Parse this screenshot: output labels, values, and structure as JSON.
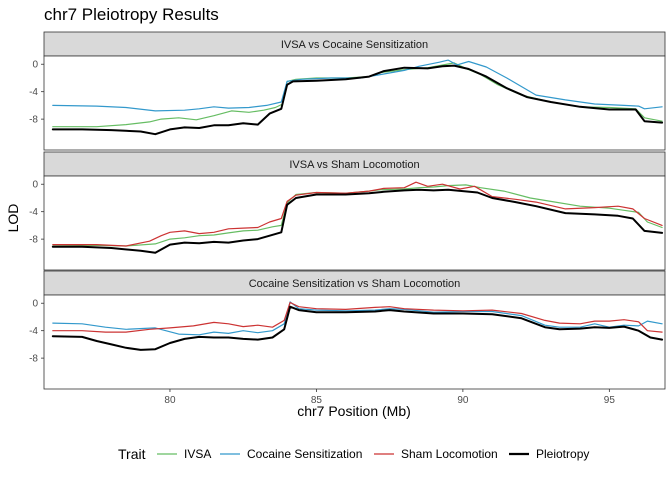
{
  "chart_data": {
    "type": "line",
    "title": "chr7 Pleiotropy Results",
    "xlabel": "chr7 Position (Mb)",
    "ylabel": "LOD",
    "xlim": [
      75.7,
      96.9
    ],
    "ylim": [
      -12.5,
      1.2
    ],
    "x_ticks": [
      80,
      85,
      90,
      95
    ],
    "y_ticks": [
      0,
      -4,
      -8
    ],
    "grid": false,
    "legend": {
      "title": "Trait",
      "placement": "bottom",
      "entries": [
        {
          "name": "IVSA",
          "color": "#66BD63"
        },
        {
          "name": "Cocaine Sensitization",
          "color": "#3399CC"
        },
        {
          "name": "Sham Locomotion",
          "color": "#CC3333"
        },
        {
          "name": "Pleiotropy",
          "color": "#000000"
        }
      ]
    },
    "panels": [
      {
        "label": "IVSA vs Cocaine Sensitization",
        "series": [
          {
            "name": "IVSA",
            "color": "#66BD63",
            "width": 1.2,
            "x": [
              76,
              77.5,
              78.5,
              79.3,
              79.7,
              80.3,
              80.9,
              81.5,
              82.1,
              82.7,
              83.2,
              83.6,
              83.85,
              84.0,
              84.3,
              85,
              86,
              86.8,
              87.2,
              88,
              88.8,
              89.2,
              89.7,
              90.1,
              90.6,
              91.2,
              92,
              93,
              94,
              95,
              95.9,
              96.2,
              96.8
            ],
            "y": [
              -9.1,
              -9.1,
              -8.8,
              -8.4,
              -8.0,
              -7.8,
              -8.1,
              -7.5,
              -6.8,
              -7.0,
              -6.7,
              -6.3,
              -5.8,
              -2.5,
              -2.2,
              -2.0,
              -2.0,
              -1.8,
              -1.2,
              -0.8,
              -0.5,
              -0.2,
              0.2,
              -0.6,
              -1.5,
              -3.0,
              -4.5,
              -5.5,
              -6.2,
              -6.3,
              -6.5,
              -7.8,
              -8.3
            ]
          },
          {
            "name": "Cocaine Sensitization",
            "color": "#3399CC",
            "width": 1.2,
            "x": [
              76,
              77.5,
              78.5,
              79.5,
              80.5,
              81,
              81.5,
              82,
              82.7,
              83.3,
              83.8,
              84.0,
              84.5,
              85.5,
              86.5,
              87.2,
              88,
              88.5,
              89.2,
              89.5,
              89.8,
              90.2,
              90.8,
              91.5,
              92.5,
              93.5,
              94.5,
              95.5,
              96.0,
              96.2,
              96.8
            ],
            "y": [
              -6.0,
              -6.1,
              -6.3,
              -6.8,
              -6.7,
              -6.5,
              -6.2,
              -6.4,
              -6.3,
              -6.0,
              -5.5,
              -2.5,
              -2.2,
              -2.0,
              -2.0,
              -1.5,
              -0.9,
              -0.3,
              0.3,
              0.6,
              -0.1,
              0.4,
              -0.4,
              -2.0,
              -4.5,
              -5.2,
              -5.8,
              -6.0,
              -6.1,
              -6.5,
              -6.2
            ]
          },
          {
            "name": "Pleiotropy",
            "color": "#000000",
            "width": 2.0,
            "x": [
              76,
              77,
              78,
              79,
              79.5,
              80,
              80.5,
              81,
              81.5,
              82,
              82.5,
              83,
              83.4,
              83.8,
              84.0,
              84.2,
              85,
              86,
              86.8,
              87.3,
              88,
              88.8,
              89.3,
              89.7,
              90.2,
              90.8,
              91.5,
              92.2,
              93,
              94,
              95,
              95.9,
              96.2,
              96.8
            ],
            "y": [
              -9.5,
              -9.5,
              -9.6,
              -9.8,
              -10.2,
              -9.5,
              -9.2,
              -9.3,
              -8.9,
              -8.9,
              -8.6,
              -8.8,
              -7.2,
              -6.5,
              -3.0,
              -2.5,
              -2.4,
              -2.2,
              -1.8,
              -1.0,
              -0.5,
              -0.6,
              -0.3,
              -0.2,
              -0.7,
              -1.8,
              -3.5,
              -4.8,
              -5.5,
              -6.2,
              -6.6,
              -6.6,
              -8.3,
              -8.5
            ]
          }
        ]
      },
      {
        "label": "IVSA vs Sham Locomotion",
        "series": [
          {
            "name": "IVSA",
            "color": "#66BD63",
            "width": 1.2,
            "x": [
              76,
              77.5,
              78.5,
              79.5,
              80,
              80.5,
              81,
              81.5,
              82,
              82.5,
              83,
              83.5,
              83.8,
              84.0,
              84.3,
              85,
              86,
              86.8,
              87.2,
              88,
              88.5,
              89,
              89.5,
              90.1,
              90.6,
              91.4,
              92.3,
              93,
              94,
              95,
              95.5,
              96,
              96.3,
              96.8
            ],
            "y": [
              -9.0,
              -8.9,
              -9.0,
              -8.7,
              -8.0,
              -7.8,
              -7.5,
              -7.4,
              -7.1,
              -6.8,
              -6.7,
              -6.2,
              -6.0,
              -2.7,
              -1.5,
              -1.2,
              -1.3,
              -1.0,
              -0.8,
              -0.7,
              -0.5,
              -0.4,
              -0.2,
              -0.1,
              -0.5,
              -1.0,
              -2.0,
              -2.5,
              -3.2,
              -3.5,
              -3.8,
              -4.1,
              -5.5,
              -6.3
            ]
          },
          {
            "name": "Sham Locomotion",
            "color": "#CC3333",
            "width": 1.2,
            "x": [
              76,
              77.5,
              78.5,
              79.3,
              79.7,
              80,
              80.5,
              81,
              81.5,
              82,
              82.5,
              83,
              83.4,
              83.8,
              84.0,
              84.3,
              85,
              86,
              86.8,
              87.3,
              88,
              88.4,
              88.8,
              89.3,
              89.9,
              90.4,
              91,
              91.8,
              92.5,
              93.5,
              94.5,
              95.3,
              95.8,
              96.2,
              96.8
            ],
            "y": [
              -8.8,
              -8.8,
              -9.0,
              -8.3,
              -7.5,
              -7.0,
              -6.8,
              -7.2,
              -7.0,
              -6.5,
              -6.4,
              -6.3,
              -5.5,
              -5.0,
              -2.5,
              -1.6,
              -1.2,
              -1.3,
              -1.0,
              -0.6,
              -0.5,
              0.3,
              -0.3,
              0.0,
              -0.7,
              -0.3,
              -1.8,
              -2.2,
              -2.6,
              -3.6,
              -3.4,
              -3.2,
              -3.6,
              -5.0,
              -6.0
            ]
          },
          {
            "name": "Pleiotropy",
            "color": "#000000",
            "width": 2.0,
            "x": [
              76,
              77,
              78,
              79,
              79.5,
              80,
              80.5,
              81,
              81.5,
              82,
              82.5,
              83,
              83.4,
              83.8,
              84.0,
              84.3,
              85,
              86,
              86.8,
              87.3,
              88,
              88.5,
              89,
              89.5,
              90,
              90.5,
              91,
              91.8,
              92.5,
              93.5,
              94.5,
              95.3,
              95.8,
              96.2,
              96.8
            ],
            "y": [
              -9.1,
              -9.1,
              -9.3,
              -9.7,
              -10.0,
              -8.8,
              -8.5,
              -8.6,
              -8.4,
              -8.5,
              -8.2,
              -8.0,
              -7.5,
              -7.0,
              -3.0,
              -2.0,
              -1.5,
              -1.5,
              -1.3,
              -1.1,
              -0.9,
              -0.8,
              -0.9,
              -0.8,
              -1.0,
              -1.2,
              -2.0,
              -2.6,
              -3.2,
              -4.2,
              -4.4,
              -4.6,
              -5.0,
              -6.8,
              -7.1
            ]
          }
        ]
      },
      {
        "label": "Cocaine Sensitization vs Sham Locomotion",
        "series": [
          {
            "name": "Cocaine Sensitization",
            "color": "#3399CC",
            "width": 1.2,
            "x": [
              76,
              77,
              77.8,
              78.5,
              79.5,
              80.3,
              81.0,
              81.5,
              82.0,
              82.5,
              83.0,
              83.5,
              83.9,
              84.1,
              84.4,
              85,
              86,
              87,
              87.5,
              88,
              89,
              90,
              91,
              92,
              92.8,
              93.3,
              94,
              94.5,
              95,
              95.5,
              96,
              96.3,
              96.8
            ],
            "y": [
              -2.9,
              -3.0,
              -3.5,
              -3.8,
              -3.6,
              -4.5,
              -4.6,
              -4.2,
              -4.4,
              -4.0,
              -4.3,
              -4.0,
              -3.0,
              0.2,
              -0.8,
              -1.0,
              -1.1,
              -1.0,
              -0.8,
              -0.9,
              -1.3,
              -1.2,
              -1.2,
              -1.8,
              -3.2,
              -3.5,
              -3.5,
              -3.0,
              -3.5,
              -3.2,
              -3.3,
              -2.6,
              -3.0
            ]
          },
          {
            "name": "Sham Locomotion",
            "color": "#CC3333",
            "width": 1.2,
            "x": [
              76,
              77,
              77.8,
              78.5,
              79.3,
              80.0,
              80.8,
              81.5,
              82.0,
              82.5,
              83.0,
              83.5,
              83.9,
              84.1,
              84.4,
              85,
              86,
              87,
              87.5,
              88,
              89,
              90,
              91,
              92,
              92.8,
              93.3,
              94,
              94.5,
              95,
              95.5,
              96,
              96.3,
              96.8
            ],
            "y": [
              -4.0,
              -4.0,
              -4.2,
              -4.2,
              -3.8,
              -3.6,
              -3.3,
              -2.8,
              -3.0,
              -3.4,
              -3.2,
              -3.5,
              -2.5,
              0.1,
              -0.5,
              -0.8,
              -0.9,
              -0.6,
              -0.5,
              -0.8,
              -1.0,
              -1.1,
              -1.0,
              -1.5,
              -2.5,
              -2.9,
              -3.0,
              -2.6,
              -2.6,
              -2.4,
              -2.7,
              -4.0,
              -4.2
            ]
          },
          {
            "name": "Pleiotropy",
            "color": "#000000",
            "width": 2.0,
            "x": [
              76,
              77,
              77.5,
              78,
              78.5,
              79.0,
              79.5,
              80.0,
              80.5,
              81,
              81.5,
              82,
              82.5,
              83,
              83.5,
              83.9,
              84.1,
              84.4,
              85,
              86,
              87,
              87.5,
              88,
              89,
              90,
              91,
              92,
              92.8,
              93.3,
              94,
              94.5,
              95,
              95.5,
              96,
              96.4,
              96.8
            ],
            "y": [
              -4.8,
              -4.9,
              -5.5,
              -6.0,
              -6.5,
              -6.8,
              -6.7,
              -5.8,
              -5.2,
              -4.9,
              -5.0,
              -5.0,
              -5.2,
              -5.3,
              -5.0,
              -3.8,
              -0.5,
              -1.0,
              -1.3,
              -1.3,
              -1.2,
              -1.0,
              -1.2,
              -1.5,
              -1.5,
              -1.6,
              -2.2,
              -3.5,
              -3.8,
              -3.7,
              -3.5,
              -3.6,
              -3.4,
              -4.0,
              -5.0,
              -5.3
            ]
          }
        ]
      }
    ]
  }
}
